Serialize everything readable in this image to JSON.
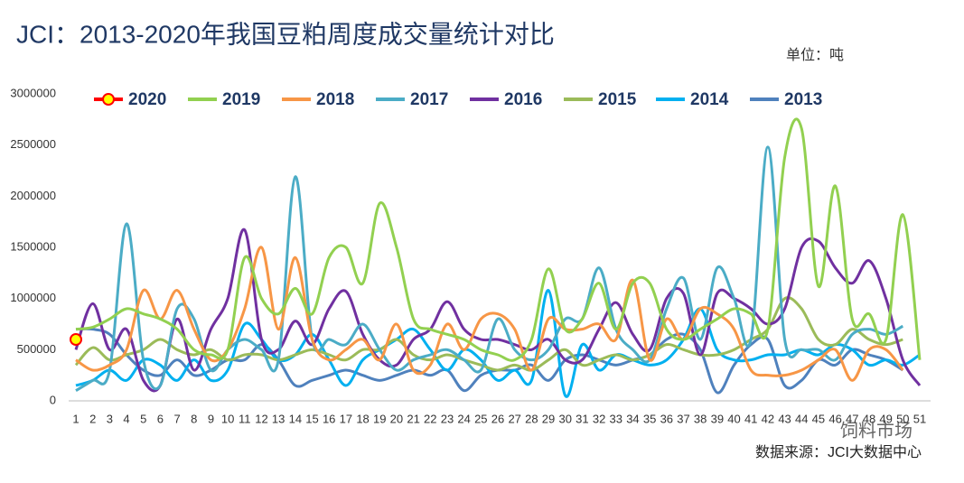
{
  "chart_data": {
    "type": "line",
    "title": "JCI：2013-2020年我国豆粕周度成交量统计对比",
    "unit": "单位：吨",
    "source": "数据来源：JCI大数据中心",
    "logo": "饲料市场",
    "categories": [
      "1",
      "2",
      "3",
      "4",
      "5",
      "6",
      "7",
      "8",
      "9",
      "10",
      "11",
      "12",
      "13",
      "14",
      "15",
      "16",
      "17",
      "18",
      "19",
      "20",
      "21",
      "22",
      "23",
      "24",
      "25",
      "26",
      "27",
      "28",
      "29",
      "30",
      "31",
      "32",
      "33",
      "34",
      "35",
      "36",
      "37",
      "38",
      "39",
      "40",
      "41",
      "42",
      "43",
      "44",
      "45",
      "46",
      "47",
      "48",
      "49",
      "50",
      "51"
    ],
    "ylim": [
      0,
      3000000
    ],
    "yticks": [
      0,
      500000,
      1000000,
      1500000,
      2000000,
      2500000,
      3000000
    ],
    "series": [
      {
        "name": "2020",
        "color": "#ff0000",
        "marker": true,
        "values": [
          600000,
          null,
          null,
          null,
          null,
          null,
          null,
          null,
          null,
          null,
          null,
          null,
          null,
          null,
          null,
          null,
          null,
          null,
          null,
          null,
          null,
          null,
          null,
          null,
          null,
          null,
          null,
          null,
          null,
          null,
          null,
          null,
          null,
          null,
          null,
          null,
          null,
          null,
          null,
          null,
          null,
          null,
          null,
          null,
          null,
          null,
          null,
          null,
          null,
          null,
          null
        ]
      },
      {
        "name": "2019",
        "color": "#92d050",
        "values": [
          700000,
          720000,
          800000,
          900000,
          850000,
          800000,
          700000,
          500000,
          450000,
          500000,
          1400000,
          1000000,
          850000,
          1100000,
          850000,
          1400000,
          1500000,
          1150000,
          1930000,
          1500000,
          800000,
          700000,
          650000,
          600000,
          500000,
          450000,
          400000,
          600000,
          1290000,
          700000,
          800000,
          1150000,
          700000,
          1150000,
          1150000,
          700000,
          600000,
          700000,
          800000,
          900000,
          850000,
          700000,
          2380000,
          2660000,
          1120000,
          2100000,
          800000,
          850000,
          600000,
          1820000,
          400000
        ]
      },
      {
        "name": "2018",
        "color": "#f79646",
        "values": [
          400000,
          300000,
          350000,
          500000,
          1080000,
          800000,
          1080000,
          700000,
          400000,
          500000,
          900000,
          1500000,
          700000,
          1400000,
          600000,
          400000,
          500000,
          600000,
          400000,
          750000,
          300000,
          350000,
          750000,
          500000,
          800000,
          850000,
          700000,
          300000,
          800000,
          700000,
          700000,
          750000,
          600000,
          1180000,
          400000,
          800000,
          600000,
          900000,
          850000,
          700000,
          300000,
          250000,
          250000,
          300000,
          400000,
          500000,
          200000,
          500000,
          500000,
          300000,
          null
        ]
      },
      {
        "name": "2017",
        "color": "#4bacc6",
        "values": [
          100000,
          200000,
          300000,
          1730000,
          400000,
          150000,
          900000,
          800000,
          300000,
          500000,
          600000,
          500000,
          400000,
          2190000,
          600000,
          600000,
          550000,
          750000,
          500000,
          300000,
          400000,
          450000,
          500000,
          400000,
          300000,
          800000,
          500000,
          400000,
          500000,
          800000,
          800000,
          1300000,
          700000,
          500000,
          400000,
          900000,
          1200000,
          600000,
          1300000,
          1000000,
          600000,
          2480000,
          600000,
          500000,
          500000,
          400000,
          650000,
          700000,
          650000,
          730000,
          null
        ]
      },
      {
        "name": "2016",
        "color": "#7030a0",
        "values": [
          500000,
          950000,
          500000,
          700000,
          200000,
          150000,
          800000,
          300000,
          700000,
          1000000,
          1670000,
          600000,
          500000,
          780000,
          550000,
          900000,
          1070000,
          650000,
          400000,
          350000,
          600000,
          700000,
          970000,
          700000,
          600000,
          600000,
          550000,
          500000,
          600000,
          400000,
          400000,
          700000,
          960000,
          650000,
          500000,
          1000000,
          1050000,
          450000,
          1050000,
          1000000,
          900000,
          750000,
          900000,
          1500000,
          1560000,
          1300000,
          1150000,
          1370000,
          1000000,
          400000,
          150000
        ]
      },
      {
        "name": "2015",
        "color": "#9bbb59",
        "values": [
          350000,
          520000,
          400000,
          450000,
          500000,
          600000,
          500000,
          450000,
          500000,
          400000,
          450000,
          450000,
          400000,
          450000,
          500000,
          450000,
          400000,
          500000,
          500000,
          600000,
          450000,
          400000,
          450000,
          400000,
          350000,
          300000,
          350000,
          300000,
          400000,
          500000,
          350000,
          400000,
          450000,
          400000,
          450000,
          550000,
          500000,
          450000,
          450000,
          500000,
          600000,
          700000,
          1000000,
          900000,
          600000,
          550000,
          700000,
          600000,
          550000,
          600000,
          null
        ]
      },
      {
        "name": "2014",
        "color": "#00b0f0",
        "values": [
          150000,
          200000,
          300000,
          200000,
          400000,
          350000,
          200000,
          400000,
          200000,
          300000,
          750000,
          600000,
          400000,
          450000,
          650000,
          400000,
          150000,
          400000,
          500000,
          600000,
          700000,
          500000,
          300000,
          500000,
          400000,
          200000,
          300000,
          200000,
          1080000,
          50000,
          550000,
          300000,
          450000,
          400000,
          350000,
          400000,
          600000,
          900000,
          500000,
          400000,
          400000,
          450000,
          450000,
          500000,
          450000,
          550000,
          500000,
          350000,
          400000,
          350000,
          450000
        ]
      },
      {
        "name": "2013",
        "color": "#4f81bd",
        "values": [
          700000,
          700000,
          650000,
          450000,
          300000,
          250000,
          400000,
          250000,
          300000,
          400000,
          400000,
          550000,
          400000,
          150000,
          200000,
          250000,
          300000,
          250000,
          200000,
          250000,
          300000,
          250000,
          300000,
          100000,
          250000,
          300000,
          300000,
          350000,
          200000,
          400000,
          450000,
          400000,
          350000,
          400000,
          450000,
          600000,
          650000,
          500000,
          80000,
          350000,
          550000,
          600000,
          150000,
          200000,
          400000,
          350000,
          500000,
          450000,
          400000,
          300000,
          null
        ]
      }
    ]
  }
}
